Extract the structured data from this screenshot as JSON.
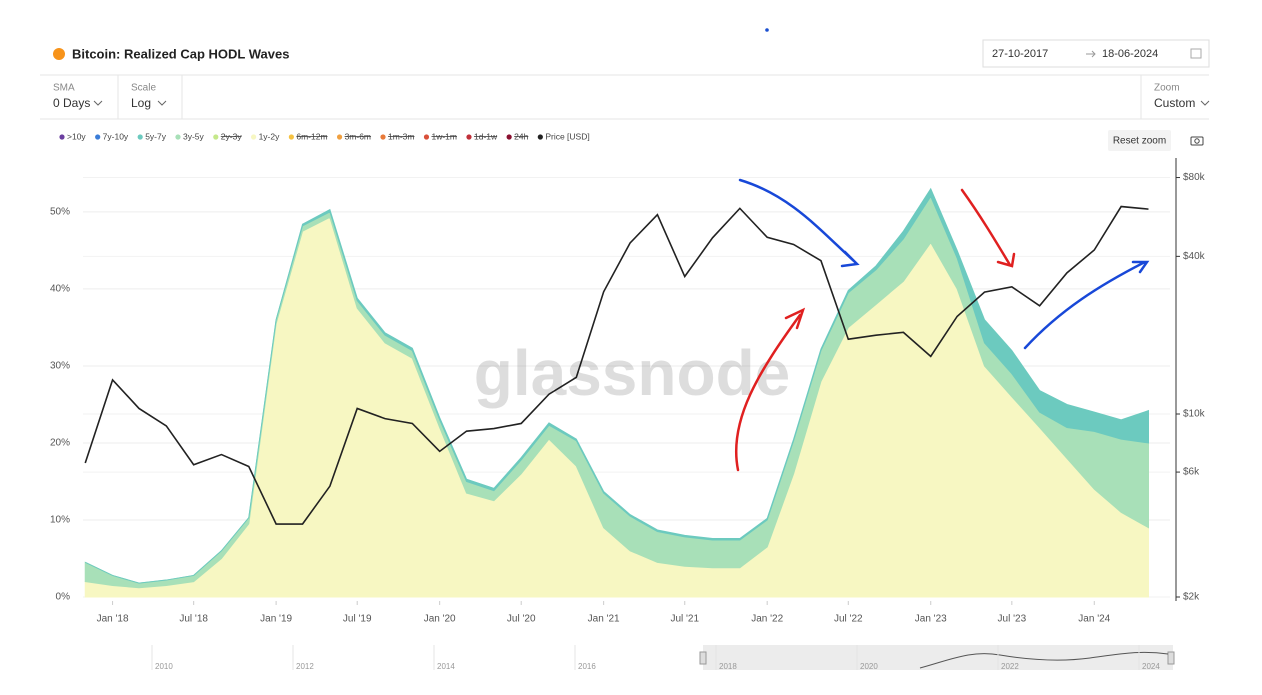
{
  "header": {
    "title": "Bitcoin: Realized Cap HODL Waves",
    "date_from": "27-10-2017",
    "date_to": "18-06-2024"
  },
  "controls": {
    "sma_label": "SMA",
    "sma_value": "0 Days",
    "scale_label": "Scale",
    "scale_value": "Log",
    "zoom_label": "Zoom",
    "zoom_value": "Custom",
    "reset_zoom": "Reset zoom"
  },
  "watermark": "glassnode",
  "navigator": {
    "labels": [
      "2010",
      "2012",
      "2014",
      "2016",
      "2018",
      "2020",
      "2022",
      "2024"
    ]
  },
  "chart_data": {
    "type": "area",
    "x": [
      "2017-11",
      "2018-01",
      "2018-03",
      "2018-05",
      "2018-07",
      "2018-09",
      "2018-11",
      "2019-01",
      "2019-03",
      "2019-05",
      "2019-07",
      "2019-09",
      "2019-11",
      "2020-01",
      "2020-03",
      "2020-05",
      "2020-07",
      "2020-09",
      "2020-11",
      "2021-01",
      "2021-03",
      "2021-05",
      "2021-07",
      "2021-09",
      "2021-11",
      "2022-01",
      "2022-03",
      "2022-05",
      "2022-07",
      "2022-09",
      "2022-11",
      "2023-01",
      "2023-03",
      "2023-05",
      "2023-07",
      "2023-09",
      "2023-11",
      "2024-01",
      "2024-03",
      "2024-05"
    ],
    "xlim": [
      "2017-10-27",
      "2024-06-18"
    ],
    "xticks": [
      {
        "value": "2018-01-01",
        "label": "Jan '18"
      },
      {
        "value": "2018-07-01",
        "label": "Jul '18"
      },
      {
        "value": "2019-01-01",
        "label": "Jan '19"
      },
      {
        "value": "2019-07-01",
        "label": "Jul '19"
      },
      {
        "value": "2020-01-01",
        "label": "Jan '20"
      },
      {
        "value": "2020-07-01",
        "label": "Jul '20"
      },
      {
        "value": "2021-01-01",
        "label": "Jan '21"
      },
      {
        "value": "2021-07-01",
        "label": "Jul '21"
      },
      {
        "value": "2022-01-01",
        "label": "Jan '22"
      },
      {
        "value": "2022-07-01",
        "label": "Jul '22"
      },
      {
        "value": "2023-01-01",
        "label": "Jan '23"
      },
      {
        "value": "2023-07-01",
        "label": "Jul '23"
      },
      {
        "value": "2024-01-01",
        "label": "Jan '24"
      }
    ],
    "ylim": [
      0,
      57
    ],
    "yticks": [
      {
        "value": 0,
        "label": "0%"
      },
      {
        "value": 10,
        "label": "10%"
      },
      {
        "value": 20,
        "label": "20%"
      },
      {
        "value": 30,
        "label": "30%"
      },
      {
        "value": 40,
        "label": "40%"
      },
      {
        "value": 50,
        "label": "50%"
      }
    ],
    "y2lim": [
      2000,
      95000
    ],
    "y2scale": "log",
    "y2ticks": [
      {
        "value": 2000,
        "label": "$2k"
      },
      {
        "value": 6000,
        "label": "$6k"
      },
      {
        "value": 10000,
        "label": "$10k"
      },
      {
        "value": 40000,
        "label": "$40k"
      },
      {
        "value": 80000,
        "label": "$80k"
      }
    ],
    "grid": true,
    "series": [
      {
        "name": ">10y",
        "color": "#6b3fa0"
      },
      {
        "name": "7y-10y",
        "color": "#3b7dd8"
      },
      {
        "name": "5y-7y",
        "color": "#6ccabf",
        "values": [
          0,
          0,
          0,
          0,
          0,
          0,
          0,
          0,
          0.2,
          0.3,
          0.3,
          0.3,
          0.3,
          0.3,
          0.3,
          0.3,
          0.3,
          0.3,
          0.2,
          0.2,
          0.2,
          0.2,
          0.2,
          0.2,
          0.2,
          0.2,
          0.2,
          0.2,
          0.3,
          0.5,
          1,
          1,
          1,
          3,
          3,
          2.8,
          3,
          2.5,
          2.5,
          4.2
        ]
      },
      {
        "name": "3y-5y",
        "color": "#a8e0b8",
        "values": [
          2.5,
          1.3,
          0.6,
          0.7,
          0.8,
          1,
          0.8,
          0.5,
          0.7,
          0.7,
          1,
          1,
          1,
          1,
          1.5,
          1.3,
          1.8,
          1.8,
          3.3,
          4.5,
          4.5,
          4,
          3.8,
          3.6,
          3.6,
          3.5,
          4.3,
          4,
          4.5,
          4.5,
          5.5,
          6,
          4,
          3,
          3,
          2,
          4,
          7.5,
          9.5,
          11
        ]
      },
      {
        "name": "2y-3y",
        "color": "#c5e88a",
        "disabled": true
      },
      {
        "name": "1y-2y",
        "color": "#f7f7c2",
        "values": [
          2.0,
          1.5,
          1.2,
          1.5,
          2.0,
          5.0,
          9.5,
          35.5,
          47.5,
          49.3,
          37.5,
          33,
          31,
          22,
          13.5,
          12.5,
          16,
          20.5,
          17,
          9,
          6,
          4.5,
          4,
          3.8,
          3.8,
          6.5,
          16,
          28,
          35,
          38,
          41,
          46,
          40,
          30,
          26,
          22,
          18,
          14,
          11,
          9
        ]
      },
      {
        "name": "6m-12m",
        "color": "#f5c242",
        "disabled": true
      },
      {
        "name": "3m-6m",
        "color": "#f0a040",
        "disabled": true
      },
      {
        "name": "1m-3m",
        "color": "#e87a3a",
        "disabled": true
      },
      {
        "name": "1w-1m",
        "color": "#d9503a",
        "disabled": true
      },
      {
        "name": "1d-1w",
        "color": "#c0303a",
        "disabled": true
      },
      {
        "name": "24h",
        "color": "#8a1030",
        "disabled": true
      },
      {
        "name": "Price [USD]",
        "color": "#222222",
        "axis": "y2",
        "type": "line",
        "values": [
          6500,
          13500,
          10500,
          9000,
          6400,
          7000,
          6300,
          3800,
          3800,
          5300,
          10500,
          9600,
          9200,
          7200,
          8600,
          8800,
          9200,
          11900,
          13800,
          29300,
          45000,
          57700,
          33500,
          47100,
          61000,
          47300,
          44400,
          38500,
          19300,
          20000,
          20500,
          16600,
          23600,
          29200,
          30600,
          25900,
          34600,
          42300,
          62000,
          60600
        ]
      }
    ]
  }
}
